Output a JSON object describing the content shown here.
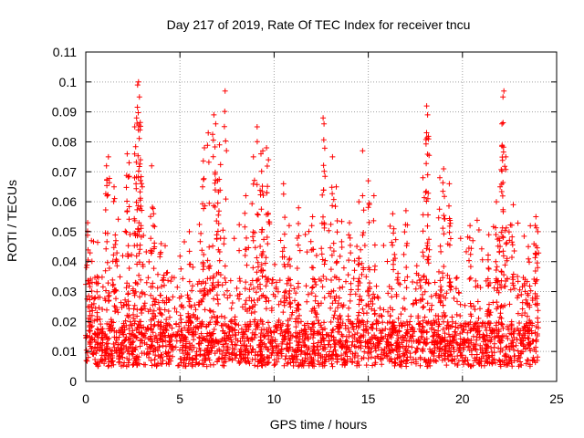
{
  "chart_data": {
    "type": "scatter",
    "title": "Day 217 of 2019, Rate Of TEC Index for receiver tncu",
    "xlabel": "GPS time / hours",
    "ylabel": "ROTI / TECUs",
    "xlim": [
      0,
      25
    ],
    "ylim": [
      0,
      0.11
    ],
    "xticks": [
      "0",
      "5",
      "10",
      "15",
      "20",
      "25"
    ],
    "yticks": [
      "0",
      "0.01",
      "0.02",
      "0.03",
      "0.04",
      "0.05",
      "0.06",
      "0.07",
      "0.08",
      "0.09",
      "0.1",
      "0.11"
    ],
    "grid": true,
    "marker": "+",
    "color": "#ff0000",
    "series": [
      {
        "name": "ROTI",
        "x_range": [
          0,
          24
        ],
        "description_points": [
          [
            0.1,
            0.053
          ],
          [
            0.2,
            0.025
          ],
          [
            0.3,
            0.047
          ],
          [
            0.6,
            0.035
          ],
          [
            1.1,
            0.072
          ],
          [
            1.2,
            0.075
          ],
          [
            1.5,
            0.065
          ],
          [
            1.6,
            0.047
          ],
          [
            2.2,
            0.076
          ],
          [
            2.3,
            0.073
          ],
          [
            2.6,
            0.085
          ],
          [
            2.7,
            0.088
          ],
          [
            2.75,
            0.099
          ],
          [
            2.8,
            0.1
          ],
          [
            2.85,
            0.095
          ],
          [
            2.9,
            0.074
          ],
          [
            3.0,
            0.065
          ],
          [
            3.5,
            0.072
          ],
          [
            3.6,
            0.056
          ],
          [
            4.0,
            0.046
          ],
          [
            5.5,
            0.05
          ],
          [
            6.2,
            0.065
          ],
          [
            6.3,
            0.078
          ],
          [
            6.5,
            0.083
          ],
          [
            6.8,
            0.089
          ],
          [
            6.9,
            0.086
          ],
          [
            7.1,
            0.079
          ],
          [
            7.4,
            0.097
          ],
          [
            7.0,
            0.067
          ],
          [
            8.5,
            0.062
          ],
          [
            8.9,
            0.075
          ],
          [
            9.1,
            0.085
          ],
          [
            9.3,
            0.076
          ],
          [
            9.4,
            0.077
          ],
          [
            9.6,
            0.078
          ],
          [
            9.7,
            0.074
          ],
          [
            10.5,
            0.066
          ],
          [
            10.8,
            0.052
          ],
          [
            11.3,
            0.058
          ],
          [
            12.0,
            0.052
          ],
          [
            12.6,
            0.088
          ],
          [
            12.65,
            0.086
          ],
          [
            13.1,
            0.075
          ],
          [
            13.3,
            0.065
          ],
          [
            14.0,
            0.053
          ],
          [
            14.5,
            0.06
          ],
          [
            14.7,
            0.077
          ],
          [
            15.0,
            0.067
          ],
          [
            15.3,
            0.062
          ],
          [
            16.3,
            0.056
          ],
          [
            17.0,
            0.057
          ],
          [
            17.9,
            0.068
          ],
          [
            18.1,
            0.092
          ],
          [
            18.15,
            0.089
          ],
          [
            18.2,
            0.081
          ],
          [
            18.8,
            0.068
          ],
          [
            19.0,
            0.071
          ],
          [
            19.3,
            0.066
          ],
          [
            20.4,
            0.052
          ],
          [
            21.4,
            0.049
          ],
          [
            21.8,
            0.06
          ],
          [
            22.0,
            0.065
          ],
          [
            22.1,
            0.086
          ],
          [
            22.15,
            0.095
          ],
          [
            22.2,
            0.097
          ],
          [
            22.3,
            0.075
          ],
          [
            22.7,
            0.059
          ],
          [
            23.5,
            0.045
          ],
          [
            23.9,
            0.055
          ],
          [
            24.0,
            0.05
          ]
        ],
        "baseline_band": [
          0.005,
          0.02
        ]
      }
    ]
  }
}
